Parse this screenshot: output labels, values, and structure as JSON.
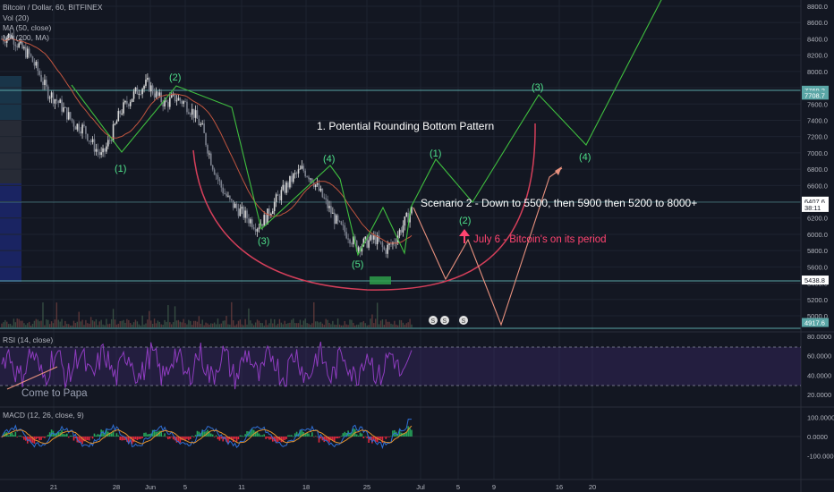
{
  "header": {
    "symbol_line": "Bitcoin / Dollar, 60, BITFINEX",
    "vol_label": "Vol (20)",
    "ma50_label": "MA (50, close)",
    "ma200_label": "MA (200, MA)"
  },
  "price_axis": {
    "ticks": [
      "8800.0",
      "8600.0",
      "8400.0",
      "8200.0",
      "8000.0",
      "7800.0",
      "7600.0",
      "7400.0",
      "7200.0",
      "7000.0",
      "6800.0",
      "6600.0",
      "6400.0",
      "6200.0",
      "6000.0",
      "5800.0",
      "5600.0",
      "5400.0",
      "5200.0",
      "5000.0"
    ],
    "tick_values": [
      8800,
      8600,
      8400,
      8200,
      8000,
      7800,
      7600,
      7400,
      7200,
      7000,
      6800,
      6600,
      6400,
      6200,
      6000,
      5800,
      5600,
      5400,
      5200,
      5000
    ],
    "badges": [
      {
        "text": "7769.2",
        "value": 7769.2,
        "color": "#5aa6a6"
      },
      {
        "text": "7708.7",
        "value": 7708.7,
        "color": "#5aa6a6"
      },
      {
        "text": "6407.6",
        "value": 6407.6,
        "color": "#ffffff"
      },
      {
        "text": "38:11",
        "value": 6330,
        "color": "#ffffff"
      },
      {
        "text": "5438.8",
        "value": 5438.8,
        "color": "#ffffff"
      },
      {
        "text": "4917.6",
        "value": 4917.6,
        "color": "#5aa6a6"
      }
    ]
  },
  "rsi": {
    "label": "RSI (14, close)",
    "ticks": [
      "80.0000",
      "60.0000",
      "40.0000",
      "20.0000"
    ],
    "tick_values": [
      80,
      60,
      40,
      20
    ],
    "annotation": "Come to Papa"
  },
  "macd": {
    "label": "MACD (12, 26, close, 9)",
    "ticks": [
      "100.0000",
      "0.0000",
      "-100.0000"
    ],
    "tick_values": [
      100,
      0,
      -100
    ]
  },
  "time_axis": {
    "labels": [
      "21",
      "28",
      "Jun",
      "5",
      "11",
      "18",
      "25",
      "Jul",
      "5",
      "9",
      "16",
      "20"
    ]
  },
  "annotations": {
    "title": "1. Potential Rounding Bottom Pattern",
    "scenario": "Scenario 2 - Down to 5500, then 5900 then 5200 to 8000+",
    "july6": "July 6 - Bitcoin's on its period",
    "waves_left": [
      "(1)",
      "(2)",
      "(3)",
      "(4)",
      "(5)"
    ],
    "waves_right": [
      "(1)",
      "(2)",
      "(3)",
      "(4)"
    ],
    "event_icons": [
      "S",
      "S",
      "S"
    ]
  },
  "colors": {
    "background": "#131722",
    "wave_green": "#3fbf3f",
    "wave_label": "#4ee08a",
    "rounding_curve": "#d43f5a",
    "scenario_path": "#e8917e",
    "ma50": "#c1553f",
    "rsi_line": "#8e3cbf",
    "macd_line": "#2f6fd6",
    "signal_line": "#e0922f",
    "hline": "#5aa6a6"
  },
  "chart_data": {
    "type": "line",
    "title": "",
    "series": [
      {
        "name": "Bitcoin / Dollar",
        "values": [
          8400,
          8450,
          8300,
          8200,
          8000,
          7750,
          7650,
          7500,
          7350,
          7300,
          7100,
          6950,
          7200,
          7500,
          7650,
          7780,
          7850,
          7700,
          7600,
          7680,
          7620,
          7500,
          7300,
          6900,
          6600,
          6400,
          6300,
          6200,
          6100,
          6200,
          6400,
          6550,
          6700,
          6800,
          6700,
          6500,
          6300,
          6100,
          6000,
          5850,
          5900,
          5950,
          5800,
          5900,
          6100,
          6300
        ]
      },
      {
        "name": "Green wave projection",
        "values": [
          6250,
          6950,
          6450,
          6150,
          7750,
          7050,
          8900
        ]
      }
    ],
    "ylim": [
      4900,
      8900
    ],
    "waves_left_prices": [
      6950,
      7850,
      6100,
      6800,
      5800
    ],
    "waves_right_prices": [
      6950,
      6150,
      7750,
      7050
    ]
  }
}
